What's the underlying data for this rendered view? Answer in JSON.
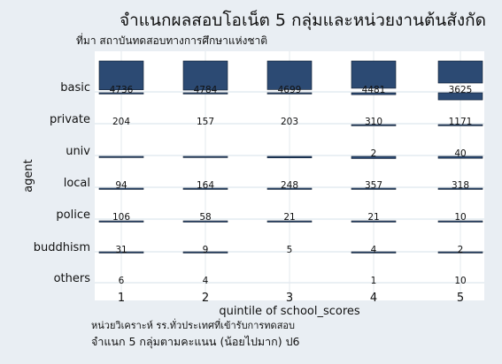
{
  "chart_data": {
    "type": "bar",
    "title": "จำแนกผลสอบโอเน็ต 5 กลุ่มและหน่วยงานต้นสังกัด",
    "subtitle": "ที่มา สถาบันทดสอบทางการศึกษาแห่งชาติ",
    "ylabel": "agent",
    "xlabel": "quintile of school_scores",
    "x": [
      "1",
      "2",
      "3",
      "4",
      "5"
    ],
    "categories": [
      "basic",
      "private",
      "univ",
      "local",
      "police",
      "buddhism",
      "others"
    ],
    "values": [
      [
        4736,
        4784,
        4699,
        4481,
        3625
      ],
      [
        204,
        157,
        203,
        310,
        1171
      ],
      [
        null,
        null,
        null,
        2,
        40
      ],
      [
        94,
        164,
        248,
        357,
        318
      ],
      [
        106,
        58,
        21,
        21,
        10
      ],
      [
        31,
        9,
        5,
        4,
        2
      ],
      [
        6,
        4,
        null,
        1,
        10
      ]
    ],
    "scale_max": 4784,
    "grid": true,
    "bar_color": "#2c4a73",
    "note": "หน่วยวิเคราะห์ รร.ทั่วประเทศที่เข้ารับการทดสอบ",
    "caption": "จำแนก 5 กลุ่มตามคะแนน (น้อยไปมาก)  ป6"
  }
}
